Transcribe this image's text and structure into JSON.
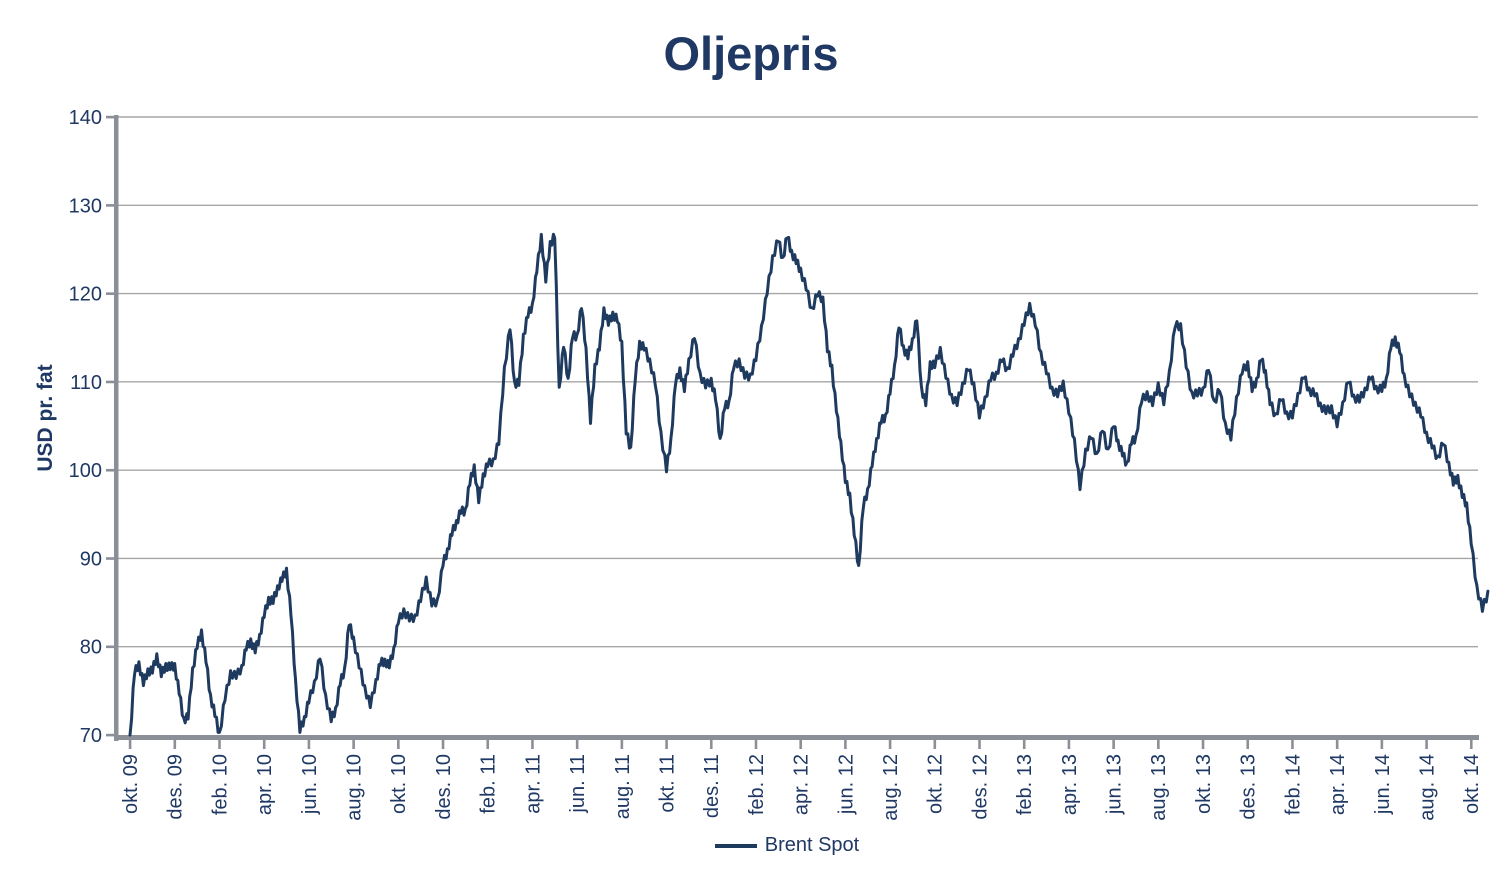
{
  "title": "Oljepris",
  "legend": {
    "series_label": "Brent Spot"
  },
  "chart_data": {
    "type": "line",
    "title": "Oljepris",
    "xlabel": "",
    "ylabel": "USD pr. fat",
    "ylim": [
      70,
      140
    ],
    "y_ticks": [
      70,
      80,
      90,
      100,
      110,
      120,
      130,
      140
    ],
    "x_tick_labels": [
      "okt. 09",
      "des. 09",
      "feb. 10",
      "apr. 10",
      "jun. 10",
      "aug. 10",
      "okt. 10",
      "des. 10",
      "feb. 11",
      "apr. 11",
      "jun. 11",
      "aug. 11",
      "okt. 11",
      "des. 11",
      "feb. 12",
      "apr. 12",
      "jun. 12",
      "aug. 12",
      "okt. 12",
      "des. 12",
      "feb. 13",
      "apr. 13",
      "jun. 13",
      "aug. 13",
      "okt. 13",
      "des. 13",
      "feb. 14",
      "apr. 14",
      "jun. 14",
      "aug. 14",
      "okt. 14"
    ],
    "x_tick_every_n_months": 2,
    "grid": "horizontal",
    "legend_position": "bottom-center",
    "line_color": "#1f3a5f",
    "grid_color": "#a6a6a6",
    "axis_color": "#8a8f98",
    "text_color": "#1f3864",
    "series": [
      {
        "name": "Brent Spot",
        "start_month": "okt. 09",
        "monthly_values": [
          [
            70.0,
            76.8,
            78.3,
            75.6,
            77.5
          ],
          [
            77.0,
            79.2,
            76.6,
            78.1,
            77.4
          ],
          [
            78.1,
            74.6,
            72.0,
            71.8,
            77.6
          ],
          [
            79.8,
            81.9,
            78.2,
            74.6,
            72.1
          ],
          [
            70.3,
            73.9,
            77.3,
            76.4
          ],
          [
            77.9,
            79.6,
            80.9,
            79.3,
            81.4
          ],
          [
            83.3,
            85.6,
            84.9,
            86.9,
            87.4
          ],
          [
            88.9,
            83.6,
            76.5,
            70.3,
            72.1
          ],
          [
            73.6,
            76.1,
            78.6,
            74.6
          ],
          [
            71.5,
            73.1,
            75.6,
            77.6,
            82.4
          ],
          [
            81.1,
            77.6,
            75.6,
            73.1
          ],
          [
            76.3,
            77.9,
            78.6,
            77.6,
            79.9
          ],
          [
            82.6,
            84.3,
            82.9,
            83.6
          ],
          [
            85.1,
            87.9,
            84.6,
            85.4
          ],
          [
            89.1,
            91.1,
            92.6,
            94.3,
            95.1
          ],
          [
            95.6,
            98.3,
            100.6,
            96.3,
            99.6
          ],
          [
            100.4,
            101.3,
            102.9,
            111.7
          ],
          [
            115.9,
            110.1,
            109.6,
            115.4,
            117.3
          ],
          [
            118.9,
            122.4,
            126.7,
            121.3,
            125.9
          ],
          [
            126.3,
            109.4,
            113.9,
            110.4,
            115.0
          ],
          [
            115.4,
            118.3,
            113.9,
            105.3,
            112.0
          ],
          [
            113.6,
            118.4,
            116.4,
            117.9,
            116.8
          ],
          [
            114.6,
            104.1,
            102.6,
            110.1,
            114.6
          ],
          [
            113.6,
            112.6,
            109.6,
            104.4
          ],
          [
            99.8,
            103.6,
            109.6,
            111.6,
            108.9
          ],
          [
            112.6,
            114.9,
            111.1,
            109.3
          ],
          [
            110.4,
            107.9,
            103.6,
            106.9,
            107.9
          ],
          [
            111.4,
            112.6,
            110.4,
            110.9
          ],
          [
            112.4,
            116.4,
            119.9,
            124.3
          ],
          [
            125.9,
            124.1,
            126.3,
            124.9,
            123.4
          ],
          [
            122.9,
            120.4,
            118.4,
            119.7
          ],
          [
            119.6,
            113.4,
            111.9,
            106.6,
            103.3
          ],
          [
            98.6,
            97.4,
            92.6,
            89.2,
            95.6
          ],
          [
            97.9,
            100.4,
            103.6,
            105.3,
            106.3
          ],
          [
            108.6,
            111.9,
            116.1,
            114.1,
            112.6
          ],
          [
            114.9,
            116.9,
            109.6,
            107.3,
            112.3
          ],
          [
            111.6,
            113.9,
            110.4,
            108.6
          ],
          [
            107.3,
            109.9,
            111.3,
            109.9
          ],
          [
            105.9,
            108.3,
            110.1,
            111.1
          ],
          [
            112.3,
            111.6,
            112.9,
            114.9
          ],
          [
            116.4,
            118.9,
            116.3,
            113.4
          ],
          [
            110.9,
            109.4,
            108.3,
            110.1
          ],
          [
            106.4,
            103.6,
            97.8,
            102.4
          ],
          [
            103.6,
            101.9,
            104.4,
            102.4
          ],
          [
            104.9,
            103.4,
            101.6,
            100.9,
            102.9
          ],
          [
            103.9,
            107.6,
            108.9,
            107.3
          ],
          [
            109.9,
            107.4,
            111.3,
            116.1
          ],
          [
            116.6,
            111.6,
            108.9,
            108.4
          ],
          [
            109.3,
            111.3,
            107.9,
            108.9
          ],
          [
            105.4,
            103.4,
            108.3,
            110.9
          ],
          [
            112.3,
            108.9,
            110.4,
            112.4,
            111.3
          ],
          [
            107.4,
            106.4,
            107.9,
            106.6
          ],
          [
            105.9,
            108.7,
            110.4,
            109.3
          ],
          [
            108.4,
            107.6,
            106.4,
            107.3
          ],
          [
            104.9,
            107.7,
            109.9,
            108.5
          ],
          [
            107.7,
            109.3,
            110.3,
            109.5
          ],
          [
            108.9,
            110.4,
            113.7,
            115.1,
            113.3
          ],
          [
            110.9,
            108.3,
            107.7,
            106.0
          ],
          [
            104.3,
            102.5,
            101.6,
            102.9
          ],
          [
            100.9,
            98.3,
            99.4,
            96.9,
            96.3
          ],
          [
            91.6,
            87.0,
            84.0,
            86.3
          ]
        ]
      }
    ]
  }
}
